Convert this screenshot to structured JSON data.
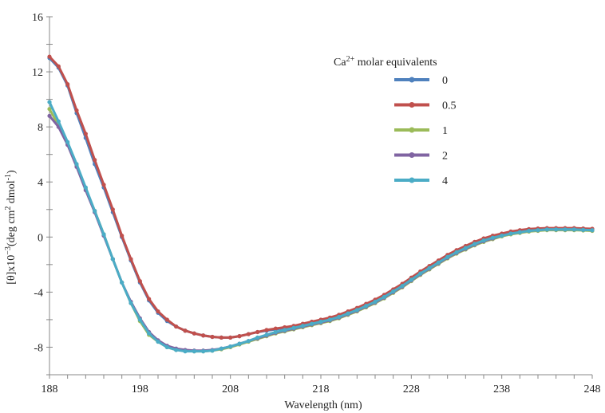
{
  "chart_data": {
    "type": "line",
    "title": "",
    "xlabel": "Wavelength (nm)",
    "ylabel": "[θ]x10",
    "ylabel_exp": "−3",
    "ylabel_unit_a": "(deg cm",
    "ylabel_unit_exp2": "2",
    "ylabel_unit_b": " dmol",
    "ylabel_unit_exp3": "-1",
    "ylabel_unit_c": ")",
    "xlim": [
      188,
      248
    ],
    "ylim": [
      -10,
      16
    ],
    "x_ticks": [
      188,
      198,
      208,
      218,
      228,
      238,
      248
    ],
    "y_ticks": [
      -8,
      -4,
      0,
      4,
      8,
      12,
      16
    ],
    "grid": false,
    "legend": {
      "title_a": "Ca",
      "title_sup": "2+",
      "title_b": " molar equivalents",
      "placement": "top-right"
    },
    "x": [
      188,
      189,
      190,
      191,
      192,
      193,
      194,
      195,
      196,
      197,
      198,
      199,
      200,
      201,
      202,
      203,
      204,
      205,
      206,
      207,
      208,
      209,
      210,
      211,
      212,
      213,
      214,
      215,
      216,
      217,
      218,
      219,
      220,
      221,
      222,
      223,
      224,
      225,
      226,
      227,
      228,
      229,
      230,
      231,
      232,
      233,
      234,
      235,
      236,
      237,
      238,
      239,
      240,
      241,
      242,
      243,
      244,
      245,
      246,
      247,
      248
    ],
    "series": [
      {
        "name": "0",
        "color": "#4f81bd",
        "values": [
          13.0,
          12.3,
          11.0,
          9.0,
          7.2,
          5.3,
          3.6,
          1.8,
          0.0,
          -1.7,
          -3.3,
          -4.6,
          -5.5,
          -6.1,
          -6.5,
          -6.8,
          -7.0,
          -7.15,
          -7.25,
          -7.3,
          -7.3,
          -7.2,
          -7.05,
          -6.9,
          -6.8,
          -6.7,
          -6.6,
          -6.5,
          -6.4,
          -6.25,
          -6.1,
          -5.95,
          -5.75,
          -5.5,
          -5.25,
          -4.95,
          -4.65,
          -4.3,
          -3.9,
          -3.5,
          -3.05,
          -2.6,
          -2.2,
          -1.8,
          -1.4,
          -1.05,
          -0.75,
          -0.45,
          -0.2,
          0.0,
          0.15,
          0.3,
          0.4,
          0.5,
          0.55,
          0.6,
          0.6,
          0.6,
          0.6,
          0.58,
          0.55
        ]
      },
      {
        "name": "0.5",
        "color": "#c0504d",
        "values": [
          13.1,
          12.4,
          11.1,
          9.2,
          7.5,
          5.6,
          3.8,
          2.0,
          0.1,
          -1.6,
          -3.2,
          -4.5,
          -5.4,
          -6.0,
          -6.5,
          -6.8,
          -7.0,
          -7.15,
          -7.25,
          -7.3,
          -7.3,
          -7.2,
          -7.05,
          -6.9,
          -6.75,
          -6.65,
          -6.55,
          -6.45,
          -6.3,
          -6.15,
          -6.0,
          -5.85,
          -5.65,
          -5.4,
          -5.15,
          -4.85,
          -4.55,
          -4.2,
          -3.8,
          -3.4,
          -2.95,
          -2.5,
          -2.1,
          -1.7,
          -1.3,
          -0.95,
          -0.65,
          -0.35,
          -0.1,
          0.1,
          0.25,
          0.4,
          0.5,
          0.58,
          0.62,
          0.65,
          0.65,
          0.65,
          0.65,
          0.62,
          0.6
        ]
      },
      {
        "name": "1",
        "color": "#9bbb59",
        "values": [
          9.3,
          8.1,
          6.8,
          5.2,
          3.5,
          1.9,
          0.2,
          -1.6,
          -3.3,
          -4.8,
          -6.1,
          -7.1,
          -7.6,
          -8.0,
          -8.2,
          -8.25,
          -8.3,
          -8.3,
          -8.25,
          -8.15,
          -8.0,
          -7.8,
          -7.6,
          -7.4,
          -7.2,
          -7.0,
          -6.85,
          -6.7,
          -6.55,
          -6.4,
          -6.25,
          -6.1,
          -5.9,
          -5.65,
          -5.4,
          -5.1,
          -4.8,
          -4.45,
          -4.05,
          -3.65,
          -3.2,
          -2.75,
          -2.35,
          -1.95,
          -1.55,
          -1.2,
          -0.9,
          -0.6,
          -0.35,
          -0.15,
          0.05,
          0.2,
          0.3,
          0.4,
          0.45,
          0.5,
          0.5,
          0.5,
          0.5,
          0.48,
          0.45
        ]
      },
      {
        "name": "2",
        "color": "#8064a2",
        "values": [
          8.8,
          8.0,
          6.7,
          5.1,
          3.4,
          1.8,
          0.1,
          -1.6,
          -3.3,
          -4.7,
          -5.9,
          -6.9,
          -7.5,
          -7.9,
          -8.1,
          -8.2,
          -8.25,
          -8.25,
          -8.2,
          -8.1,
          -7.95,
          -7.75,
          -7.55,
          -7.35,
          -7.15,
          -6.95,
          -6.8,
          -6.65,
          -6.5,
          -6.35,
          -6.2,
          -6.05,
          -5.85,
          -5.6,
          -5.35,
          -5.05,
          -4.75,
          -4.4,
          -4.0,
          -3.6,
          -3.15,
          -2.7,
          -2.3,
          -1.9,
          -1.5,
          -1.15,
          -0.85,
          -0.55,
          -0.3,
          -0.1,
          0.1,
          0.25,
          0.35,
          0.45,
          0.5,
          0.55,
          0.55,
          0.55,
          0.55,
          0.52,
          0.5
        ]
      },
      {
        "name": "4",
        "color": "#4bacc6",
        "values": [
          9.8,
          8.4,
          6.9,
          5.3,
          3.6,
          1.9,
          0.2,
          -1.6,
          -3.3,
          -4.8,
          -6.0,
          -7.0,
          -7.6,
          -8.0,
          -8.2,
          -8.3,
          -8.3,
          -8.3,
          -8.25,
          -8.1,
          -7.95,
          -7.75,
          -7.55,
          -7.3,
          -7.1,
          -6.9,
          -6.75,
          -6.6,
          -6.45,
          -6.3,
          -6.15,
          -6.0,
          -5.8,
          -5.55,
          -5.3,
          -5.0,
          -4.7,
          -4.35,
          -3.95,
          -3.55,
          -3.1,
          -2.65,
          -2.25,
          -1.85,
          -1.45,
          -1.1,
          -0.8,
          -0.5,
          -0.25,
          -0.05,
          0.1,
          0.25,
          0.35,
          0.45,
          0.5,
          0.55,
          0.55,
          0.55,
          0.55,
          0.52,
          0.5
        ]
      }
    ]
  }
}
